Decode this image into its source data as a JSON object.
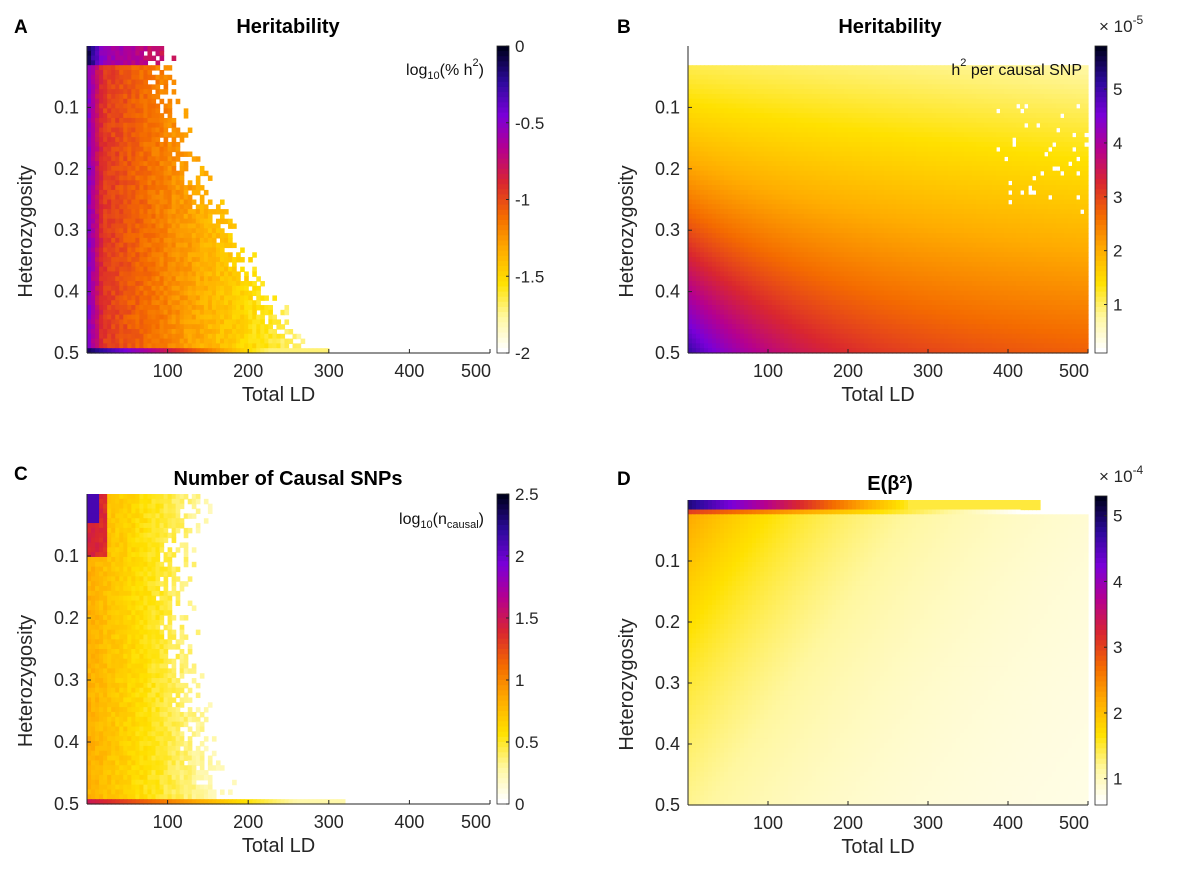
{
  "chart_data": [
    {
      "type": "heatmap",
      "panel": "A",
      "title": "Heritability",
      "xlabel": "Total LD",
      "ylabel": "Heterozygosity",
      "annotation": {
        "base": "log",
        "sub": "10",
        "pre": "(% h",
        "sup": "2",
        "post": ")"
      },
      "xlim": [
        0,
        500
      ],
      "ylim": [
        0,
        0.5
      ],
      "y_reversed": true,
      "xticks": [
        100,
        200,
        300,
        400,
        500
      ],
      "yticks": [
        0.1,
        0.2,
        0.3,
        0.4,
        0.5
      ],
      "colorbar": {
        "min": -2,
        "max": 0,
        "ticks": [
          0,
          -0.5,
          -1,
          -1.5,
          -2
        ],
        "exponent": ""
      },
      "pattern": "log_pct_h2"
    },
    {
      "type": "heatmap",
      "panel": "B",
      "title": "Heritability",
      "xlabel": "Total LD",
      "ylabel": "Heterozygosity",
      "annotation": {
        "base": "h",
        "sub": "",
        "pre": "",
        "sup": "2",
        "post": " per causal SNP"
      },
      "xlim": [
        0,
        500
      ],
      "ylim": [
        0,
        0.5
      ],
      "y_reversed": true,
      "xticks": [
        100,
        200,
        300,
        400,
        500
      ],
      "yticks": [
        0.1,
        0.2,
        0.3,
        0.4,
        0.5
      ],
      "colorbar": {
        "min": 0.1,
        "max": 5.8,
        "ticks": [
          5,
          4,
          3,
          2,
          1
        ],
        "exponent": "-5"
      },
      "pattern": "h2_per_snp"
    },
    {
      "type": "heatmap",
      "panel": "C",
      "title": "Number of Causal SNPs",
      "xlabel": "Total LD",
      "ylabel": "Heterozygosity",
      "annotation": {
        "base": "log",
        "sub": "10",
        "pre": "(n",
        "sup": "",
        "post": ")",
        "sub2": "causal"
      },
      "xlim": [
        0,
        500
      ],
      "ylim": [
        0,
        0.5
      ],
      "y_reversed": true,
      "xticks": [
        100,
        200,
        300,
        400,
        500
      ],
      "yticks": [
        0.1,
        0.2,
        0.3,
        0.4,
        0.5
      ],
      "colorbar": {
        "min": 0,
        "max": 2.5,
        "ticks": [
          2.5,
          2,
          1.5,
          1,
          0.5,
          0
        ],
        "exponent": ""
      },
      "pattern": "log_ncausal"
    },
    {
      "type": "heatmap",
      "panel": "D",
      "title": "E(β²)",
      "xlabel": "Total LD",
      "ylabel": "Heterozygosity",
      "annotation": null,
      "xlim": [
        0,
        500
      ],
      "ylim": [
        0,
        0.5
      ],
      "y_reversed": true,
      "xticks": [
        100,
        200,
        300,
        400,
        500
      ],
      "yticks": [
        0.1,
        0.2,
        0.3,
        0.4,
        0.5
      ],
      "colorbar": {
        "min": 0.6,
        "max": 5.3,
        "ticks": [
          5,
          4,
          3,
          2,
          1
        ],
        "exponent": "-4"
      },
      "pattern": "e_beta2"
    }
  ],
  "colormap": [
    "#ffffff",
    "#fff7a0",
    "#ffe100",
    "#ffac00",
    "#f46b00",
    "#d92630",
    "#b5008f",
    "#7a00d8",
    "#2d0a9c",
    "#000020"
  ],
  "exponent_prefix": "× 10"
}
